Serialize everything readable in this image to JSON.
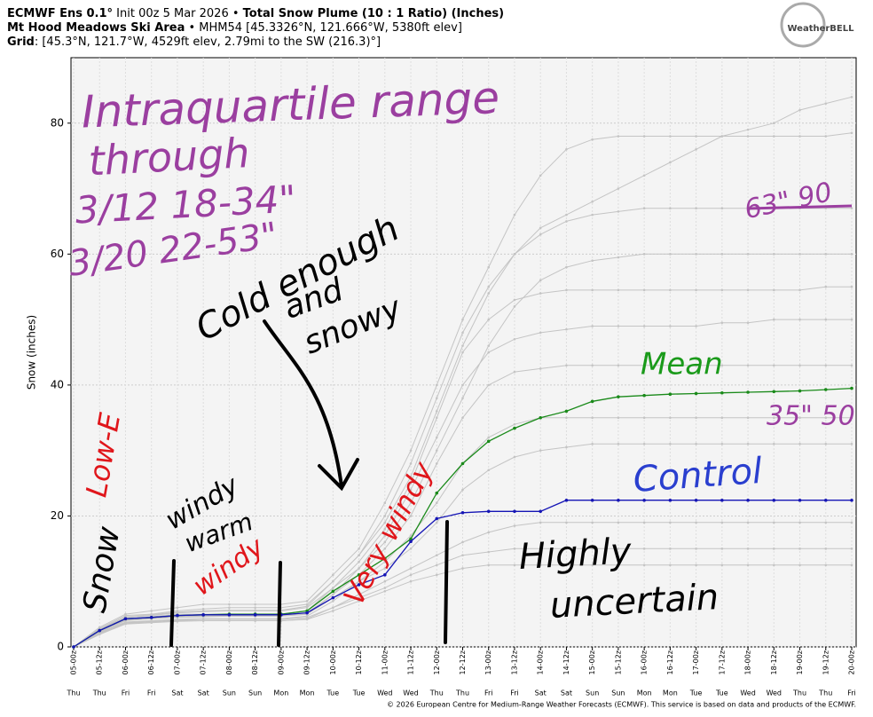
{
  "chart_data": {
    "type": "line",
    "header": [
      [
        {
          "text": "ECMWF Ens 0.1°",
          "bold": true
        },
        {
          "text": " Init 00z 5 Mar 2026 • ",
          "bold": false
        },
        {
          "text": "Total Snow Plume (10 : 1 Ratio) (Inches)",
          "bold": true
        }
      ],
      [
        {
          "text": "Mt Hood Meadows Ski Area",
          "bold": true
        },
        {
          "text": " • MHM54 [45.3326°N, 121.666°W, 5380ft elev]",
          "bold": false
        }
      ],
      [
        {
          "text": "Grid",
          "bold": true
        },
        {
          "text": ": [45.3°N, 121.7°W, 4529ft elev, 2.79mi to the SW (216.3)°]",
          "bold": false
        }
      ]
    ],
    "logo": "WeatherBELL",
    "ylabel": "Snow (inches)",
    "footer": "© 2026 European Centre for Medium-Range Weather Forecasts (ECMWF). This service is based on data and products of the ECMWF.",
    "categories": [
      "05-00z",
      "05-12z",
      "06-00z",
      "06-12z",
      "07-00z",
      "07-12z",
      "08-00z",
      "08-12z",
      "09-00z",
      "09-12z",
      "10-00z",
      "10-12z",
      "11-00z",
      "11-12z",
      "12-00z",
      "12-12z",
      "13-00z",
      "13-12z",
      "14-00z",
      "14-12z",
      "15-00z",
      "15-12z",
      "16-00z",
      "16-12z",
      "17-00z",
      "17-12z",
      "18-00z",
      "18-12z",
      "19-00z",
      "19-12z",
      "20-00z"
    ],
    "weekdays": [
      "Thu",
      "Thu",
      "Fri",
      "Fri",
      "Sat",
      "Sat",
      "Sun",
      "Sun",
      "Mon",
      "Mon",
      "Tue",
      "Tue",
      "Wed",
      "Wed",
      "Thu",
      "Thu",
      "Fri",
      "Fri",
      "Sat",
      "Sat",
      "Sun",
      "Sun",
      "Mon",
      "Mon",
      "Tue",
      "Tue",
      "Wed",
      "Wed",
      "Thu",
      "Thu",
      "Fri"
    ],
    "ylim": [
      0,
      90
    ],
    "yticks": [
      0,
      20,
      40,
      60,
      80
    ],
    "grid": true,
    "member_color": "#c4c4c4",
    "members": [
      {
        "values": [
          0,
          3,
          5,
          5.5,
          6,
          6.5,
          6.5,
          6.5,
          6.5,
          7,
          11,
          15,
          22,
          30,
          40,
          50,
          58,
          66,
          72,
          76,
          77.5,
          78,
          78,
          78,
          78,
          78,
          78,
          78,
          78,
          78,
          78.5
        ]
      },
      {
        "values": [
          0,
          2.8,
          4.8,
          5,
          5.5,
          5.8,
          6,
          6,
          6,
          6.5,
          10,
          14,
          20,
          28,
          38,
          48,
          55,
          60,
          63,
          65,
          66,
          66.5,
          67,
          67,
          67,
          67,
          67,
          67,
          67,
          67,
          67
        ]
      },
      {
        "values": [
          0,
          2.5,
          4.3,
          4.6,
          5,
          5,
          5,
          5,
          5,
          5.5,
          9,
          13,
          18,
          25,
          35,
          45,
          50,
          53,
          54,
          54.5,
          54.5,
          54.5,
          54.5,
          54.5,
          54.5,
          54.5,
          54.5,
          54.5,
          54.5,
          55,
          55
        ]
      },
      {
        "values": [
          0,
          2.3,
          4,
          4.3,
          4.5,
          4.6,
          4.7,
          4.7,
          4.7,
          5,
          8,
          12,
          17,
          24,
          32,
          40,
          45,
          47,
          48,
          48.5,
          49,
          49,
          49,
          49,
          49,
          49.5,
          49.5,
          50,
          50,
          50,
          50
        ]
      },
      {
        "values": [
          0,
          2.5,
          4.2,
          4.4,
          4.7,
          4.8,
          4.8,
          4.8,
          4.8,
          5.2,
          8,
          11,
          15,
          20,
          28,
          35,
          40,
          42,
          42.5,
          43,
          43,
          43,
          43,
          43,
          43,
          43,
          43,
          43,
          43,
          43,
          43
        ]
      },
      {
        "values": [
          0,
          2.2,
          3.8,
          4,
          4.2,
          4.3,
          4.3,
          4.3,
          4.3,
          4.7,
          7,
          10,
          13,
          17,
          22,
          28,
          32,
          34,
          35,
          35,
          35,
          35,
          35,
          35,
          35,
          35,
          35,
          35,
          35,
          35,
          35
        ]
      },
      {
        "values": [
          0,
          2.4,
          4.1,
          4.3,
          4.6,
          4.7,
          4.7,
          4.7,
          4.7,
          5,
          7.5,
          10,
          12,
          15,
          19,
          24,
          27,
          29,
          30,
          30.5,
          31,
          31,
          31,
          31,
          31,
          31,
          31,
          31,
          31,
          31,
          31
        ]
      },
      {
        "values": [
          0,
          2,
          3.6,
          3.8,
          4,
          4,
          4,
          4,
          4,
          4.3,
          6,
          8,
          10,
          12,
          14,
          16,
          17.5,
          18.5,
          19,
          19,
          19,
          19,
          19,
          19,
          19,
          19,
          19,
          19,
          19,
          19,
          19
        ]
      },
      {
        "values": [
          0,
          2.1,
          3.7,
          3.9,
          4.1,
          4.2,
          4.2,
          4.2,
          4.2,
          4.5,
          6,
          7.5,
          9,
          11,
          12.5,
          14,
          14.5,
          15,
          15,
          15,
          15,
          15,
          15,
          15,
          15,
          15,
          15,
          15,
          15,
          15,
          15
        ]
      },
      {
        "values": [
          0,
          2.6,
          4.5,
          4.8,
          5.2,
          5.4,
          5.5,
          5.5,
          5.5,
          6,
          9,
          12,
          16,
          22,
          30,
          38,
          46,
          52,
          56,
          58,
          59,
          59.5,
          60,
          60,
          60,
          60,
          60,
          60,
          60,
          60,
          60
        ]
      },
      {
        "values": [
          0,
          1.9,
          3.5,
          3.7,
          3.9,
          4,
          4,
          4,
          4,
          4.2,
          5.5,
          7,
          8.5,
          10,
          11,
          12,
          12.5,
          12.5,
          12.5,
          12.5,
          12.5,
          12.5,
          12.5,
          12.5,
          12.5,
          12.5,
          12.5,
          12.5,
          12.5,
          12.5,
          12.5
        ]
      },
      {
        "values": [
          0,
          2.7,
          4.6,
          4.9,
          5.3,
          5.5,
          5.6,
          5.6,
          5.6,
          6.2,
          10,
          14,
          19,
          26,
          36,
          46,
          54,
          60,
          64,
          66,
          68,
          70,
          72,
          74,
          76,
          78,
          79,
          80,
          82,
          83,
          84
        ]
      }
    ],
    "series": [
      {
        "name": "Mean",
        "color": "#1a8a1a",
        "values": [
          0,
          2.5,
          4.3,
          4.5,
          4.8,
          4.9,
          5,
          5,
          5,
          5.5,
          8.5,
          11,
          13.5,
          16.5,
          23.5,
          28,
          31.4,
          33.4,
          35,
          36,
          37.5,
          38.2,
          38.4,
          38.6,
          38.7,
          38.8,
          38.9,
          39,
          39.1,
          39.3,
          39.5
        ]
      },
      {
        "name": "Control",
        "color": "#1515b5",
        "values": [
          0,
          2.5,
          4.3,
          4.5,
          4.8,
          4.9,
          4.9,
          4.9,
          4.9,
          5.2,
          7.5,
          9.5,
          11,
          16.1,
          19.6,
          20.5,
          20.7,
          20.7,
          20.7,
          22.4,
          22.4,
          22.4,
          22.4,
          22.4,
          22.4,
          22.4,
          22.4,
          22.4,
          22.4,
          22.4,
          22.4
        ]
      }
    ],
    "annotations": [
      {
        "text": "Intraquartile range",
        "color": "#9b3fa0"
      },
      {
        "text": "through",
        "color": "#9b3fa0"
      },
      {
        "text": "3/12  18-34\"",
        "color": "#9b3fa0"
      },
      {
        "text": "3/20  22-53\"",
        "color": "#9b3fa0"
      },
      {
        "text": "Cold enough",
        "color": "#000000"
      },
      {
        "text": "and",
        "color": "#000000"
      },
      {
        "text": "snowy",
        "color": "#000000"
      },
      {
        "text": "Mean",
        "color": "#1a9a1a"
      },
      {
        "text": "Control",
        "color": "#2a3fcf"
      },
      {
        "text": "63\" 90",
        "color": "#9b3fa0"
      },
      {
        "text": "35\" 50",
        "color": "#9b3fa0"
      },
      {
        "text": "Highly",
        "color": "#000000"
      },
      {
        "text": "uncertain",
        "color": "#000000"
      },
      {
        "text": "Snow",
        "color": "#000000"
      },
      {
        "text": "Low-E",
        "color": "#e0161b"
      },
      {
        "text": "windy",
        "color": "#000000"
      },
      {
        "text": "warm",
        "color": "#000000"
      },
      {
        "text": "windy",
        "color": "#e0161b"
      },
      {
        "text": "Very windy",
        "color": "#e0161b"
      }
    ]
  }
}
